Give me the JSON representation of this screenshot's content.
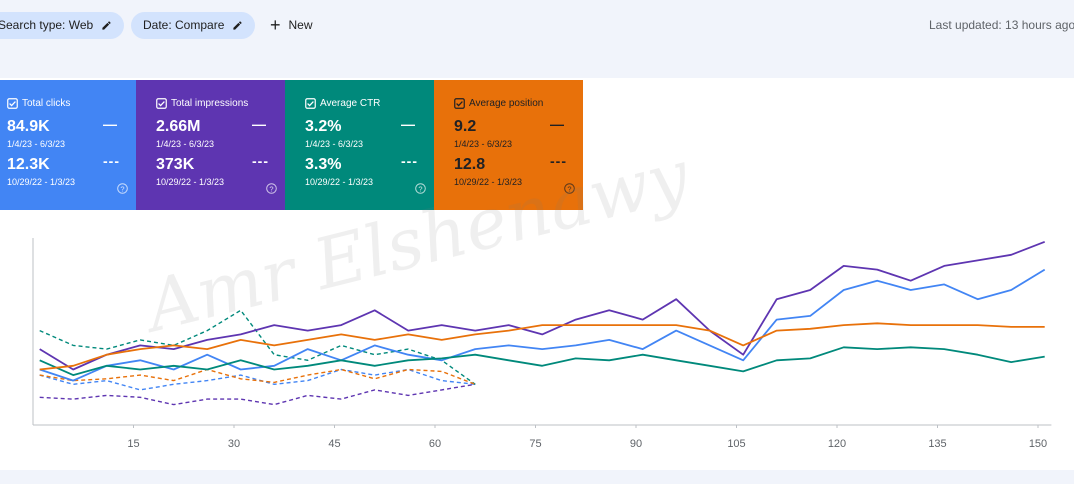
{
  "toolbar": {
    "chips": [
      "Search type: Web",
      "Date: Compare"
    ],
    "new_button": "New",
    "last_updated": "Last updated: 13 hours ago"
  },
  "watermark": "Amr Elshenawy",
  "chart_data": {
    "type": "line",
    "x": [
      1,
      6,
      11,
      16,
      21,
      26,
      31,
      36,
      41,
      46,
      51,
      56,
      61,
      66,
      71,
      76,
      81,
      86,
      91,
      96,
      101,
      106,
      111,
      116,
      121,
      126,
      131,
      136,
      141,
      146,
      151
    ],
    "previous_x": [
      1,
      6,
      11,
      16,
      21,
      26,
      31,
      36,
      41,
      46,
      51,
      56,
      61,
      66
    ],
    "xlim": [
      0,
      152
    ],
    "xticks": [
      15,
      30,
      45,
      60,
      75,
      90,
      105,
      120,
      135,
      150
    ],
    "ylim": [
      0,
      100
    ],
    "series": [
      {
        "name": "Total clicks",
        "color": "#4285f4",
        "current_total": "84.9K",
        "current_range": "1/4/23 - 6/3/23",
        "previous_total": "12.3K",
        "previous_range": "10/29/22 - 1/3/23",
        "values": [
          30,
          24,
          32,
          35,
          30,
          38,
          30,
          32,
          41,
          35,
          43,
          38,
          35,
          41,
          43,
          41,
          43,
          46,
          41,
          51,
          43,
          35,
          57,
          59,
          73,
          78,
          73,
          76,
          68,
          73,
          84
        ],
        "previous_values": [
          27,
          22,
          24,
          19,
          22,
          24,
          27,
          22,
          24,
          30,
          27,
          30,
          24,
          22
        ]
      },
      {
        "name": "Total impressions",
        "color": "#5e35b1",
        "current_total": "2.66M",
        "current_range": "1/4/23 - 6/3/23",
        "previous_total": "373K",
        "previous_range": "10/29/22 - 1/3/23",
        "values": [
          41,
          30,
          38,
          43,
          41,
          46,
          49,
          54,
          51,
          54,
          62,
          51,
          54,
          51,
          54,
          49,
          57,
          62,
          57,
          68,
          51,
          38,
          68,
          73,
          86,
          84,
          78,
          86,
          89,
          92,
          99
        ],
        "previous_values": [
          15,
          14,
          16,
          15,
          11,
          14,
          14,
          11,
          16,
          14,
          19,
          16,
          19,
          22
        ]
      },
      {
        "name": "Average CTR",
        "color": "#00897b",
        "current_total": "3.2%",
        "current_range": "1/4/23 - 6/3/23",
        "previous_total": "3.3%",
        "previous_range": "10/29/22 - 1/3/23",
        "values": [
          35,
          27,
          32,
          30,
          32,
          30,
          35,
          30,
          32,
          35,
          32,
          35,
          36,
          38,
          35,
          32,
          36,
          35,
          38,
          35,
          32,
          29,
          35,
          36,
          42,
          41,
          42,
          41,
          38,
          34,
          37
        ],
        "previous_values": [
          51,
          43,
          41,
          46,
          43,
          51,
          62,
          38,
          35,
          43,
          38,
          41,
          35,
          22
        ]
      },
      {
        "name": "Average position",
        "color": "#e8710a",
        "current_total": "9.2",
        "current_range": "1/4/23 - 6/3/23",
        "previous_total": "12.8",
        "previous_range": "10/29/22 - 1/3/23",
        "values": [
          30,
          32,
          38,
          41,
          43,
          41,
          46,
          43,
          46,
          49,
          46,
          49,
          46,
          49,
          51,
          54,
          54,
          54,
          54,
          54,
          51,
          43,
          51,
          52,
          54,
          55,
          54,
          54,
          54,
          53,
          53
        ],
        "previous_values": [
          27,
          24,
          25,
          27,
          24,
          30,
          25,
          23,
          27,
          30,
          25,
          30,
          29,
          22
        ]
      }
    ]
  }
}
